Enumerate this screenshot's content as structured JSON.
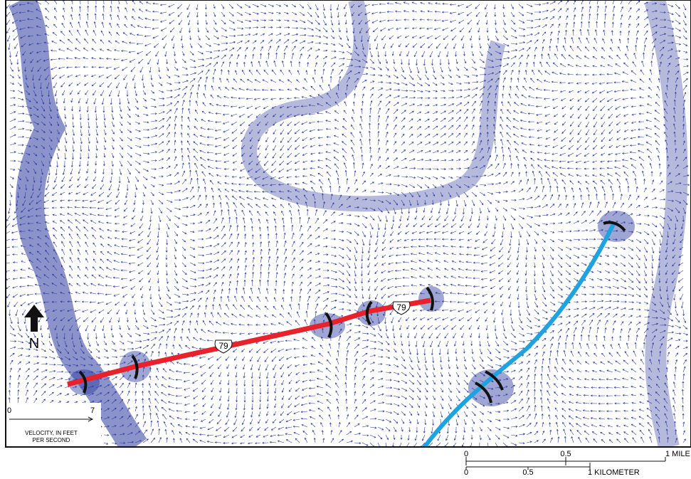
{
  "north_arrow": {
    "label": "N"
  },
  "route_shields": [
    "79",
    "79"
  ],
  "velocity_scale": {
    "start": "0",
    "end": "7",
    "caption": [
      "VELOCITY, IN FEET",
      "PER SECOND"
    ]
  },
  "scale_bar": {
    "miles": [
      "0",
      "0.5",
      "1 MILE"
    ],
    "kilometers": [
      "0",
      "0.5",
      "1 KILOMETER"
    ]
  }
}
